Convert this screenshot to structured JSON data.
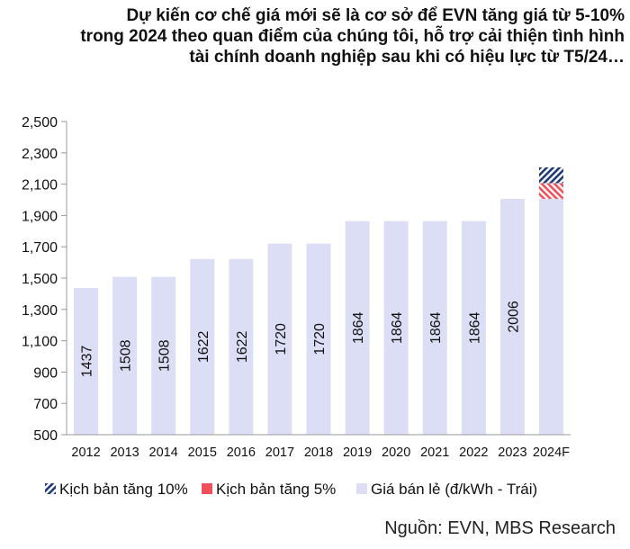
{
  "title_lines": [
    "Dự kiến cơ chế giá mới sẽ là cơ sở để EVN tăng giá từ 5-10%",
    "trong 2024 theo quan điểm của chúng tôi, hỗ trợ cải thiện tình hình",
    "tài chính doanh nghiệp sau khi có hiệu lực từ T5/24…"
  ],
  "source": "Nguồn: EVN, MBS Research",
  "colors": {
    "bar": "#dcdef5",
    "scenario_10": "#1f3a75",
    "scenario_5": "#f0505a",
    "axis": "#999999",
    "text": "#111111"
  },
  "chart_data": {
    "type": "bar",
    "categories": [
      "2012",
      "2013",
      "2014",
      "2015",
      "2016",
      "2017",
      "2018",
      "2019",
      "2020",
      "2021",
      "2022",
      "2023",
      "2024F"
    ],
    "series": [
      {
        "name": "Giá bán lẻ (đ/kWh - Trái)",
        "values": [
          1437,
          1508,
          1508,
          1622,
          1622,
          1720,
          1720,
          1864,
          1864,
          1864,
          1864,
          2006,
          2006
        ],
        "labels": [
          "1437",
          "1508",
          "1508",
          "1622",
          "1622",
          "1720",
          "1720",
          "1864",
          "1864",
          "1864",
          "1864",
          "2006",
          ""
        ]
      },
      {
        "name": "Kịch bản tăng 5%",
        "stack_on": "2024F",
        "from": 2006,
        "to": 2106
      },
      {
        "name": "Kịch bản tăng 10%",
        "stack_on": "2024F",
        "from": 2106,
        "to": 2207
      }
    ],
    "ylim": [
      500,
      2500
    ],
    "yticks": [
      500,
      700,
      900,
      1100,
      1300,
      1500,
      1700,
      1900,
      2100,
      2300,
      2500
    ],
    "ytick_labels": [
      "500",
      "700",
      "900",
      "1,100",
      "1,300",
      "1,500",
      "1,700",
      "1,900",
      "2,100",
      "2,300",
      "2,500"
    ],
    "legend": [
      {
        "label": "Kịch bản tăng 10%",
        "key": "scenario_10"
      },
      {
        "label": "Kịch bản tăng 5%",
        "key": "scenario_5"
      },
      {
        "label": "Giá bán lẻ (đ/kWh - Trái)",
        "key": "bar"
      }
    ],
    "legend_position": "bottom",
    "grid": false
  }
}
